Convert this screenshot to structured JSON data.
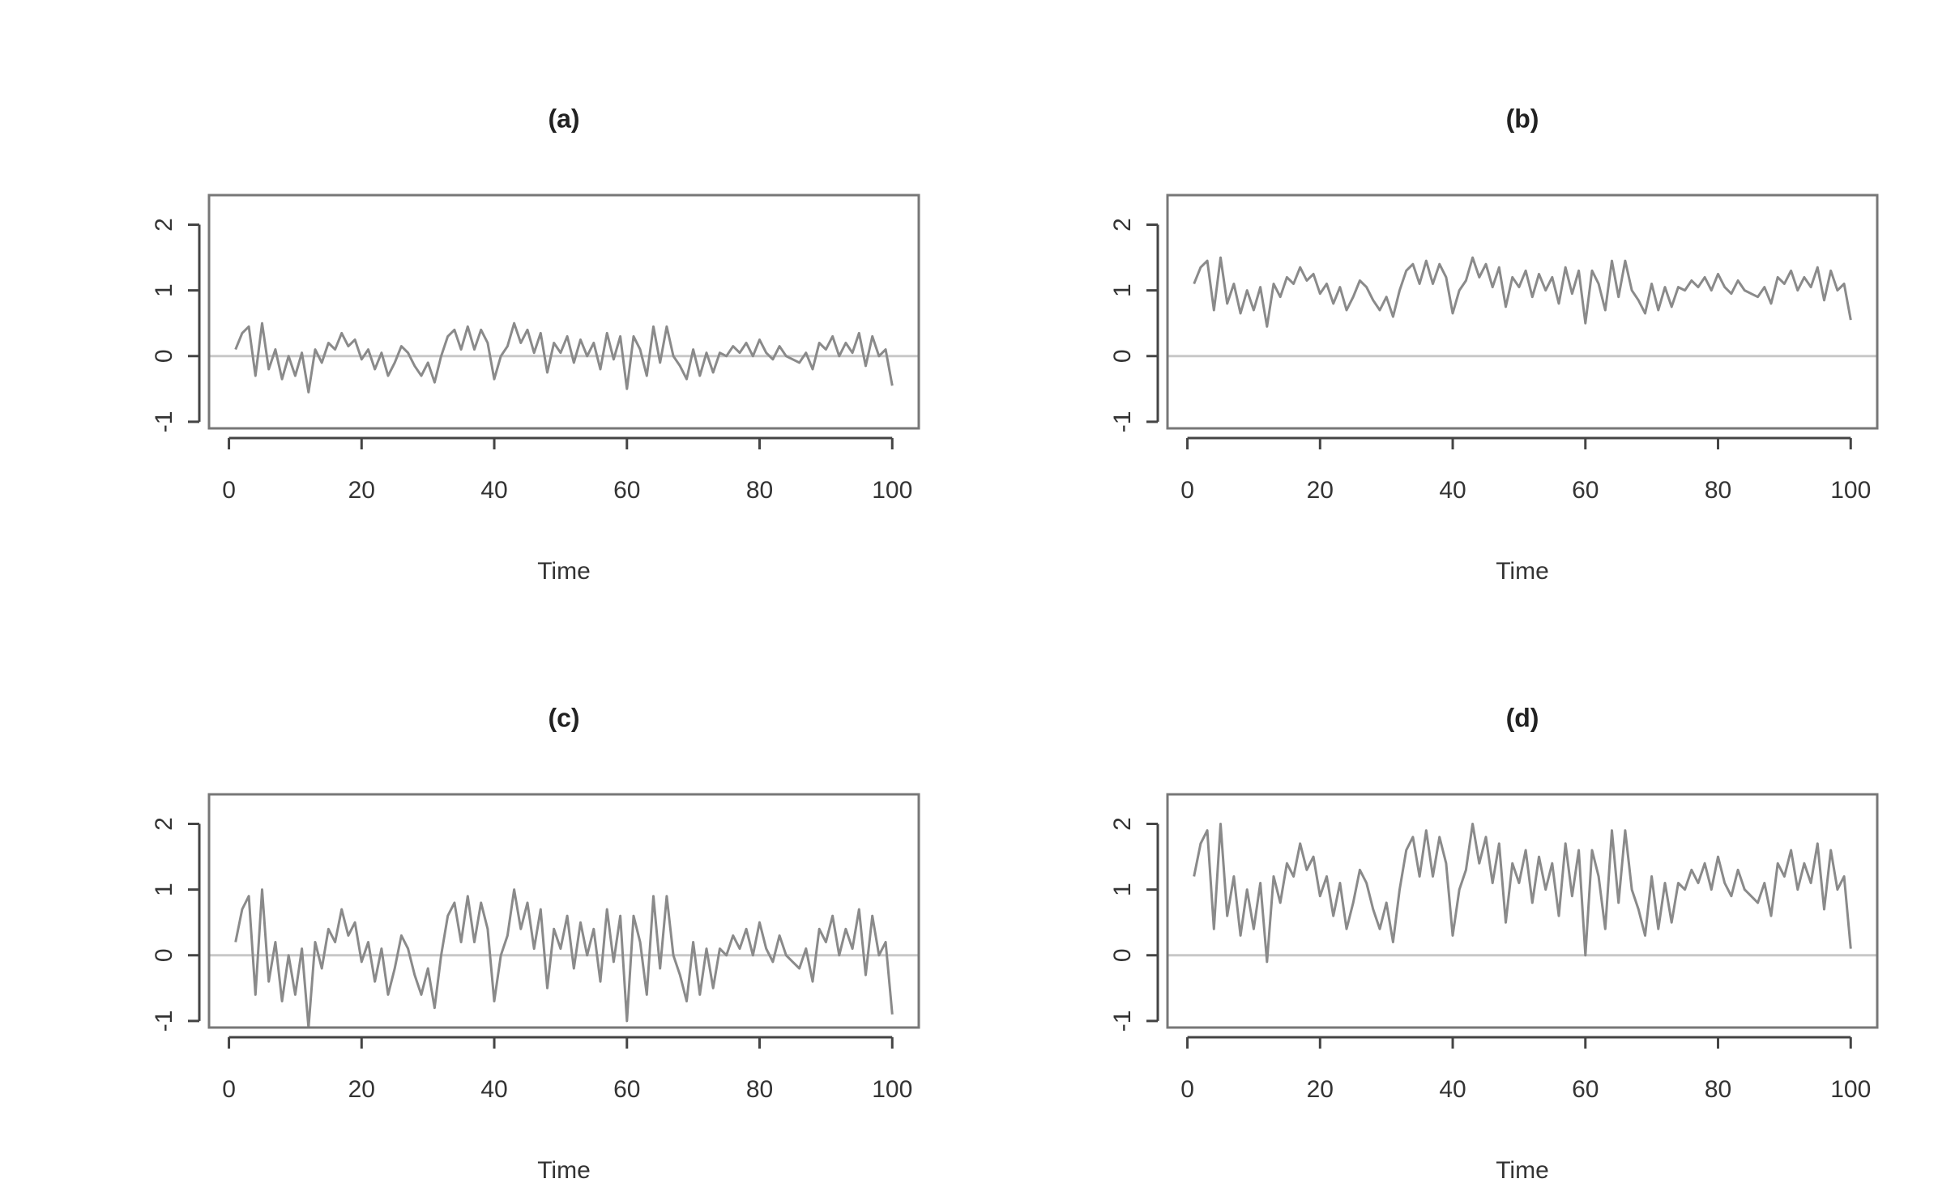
{
  "chart_data": [
    {
      "type": "line",
      "title": "(a)",
      "xlabel": "Time",
      "xlim": [
        -3,
        104
      ],
      "ylim": [
        -1.1,
        2.45
      ],
      "xticks": [
        0,
        20,
        40,
        60,
        80,
        100
      ],
      "yticks": [
        -1,
        0,
        1,
        2
      ],
      "hline": 0,
      "color": "#8a8a8a",
      "x": [
        1,
        2,
        3,
        4,
        5,
        6,
        7,
        8,
        9,
        10,
        11,
        12,
        13,
        14,
        15,
        16,
        17,
        18,
        19,
        20,
        21,
        22,
        23,
        24,
        25,
        26,
        27,
        28,
        29,
        30,
        31,
        32,
        33,
        34,
        35,
        36,
        37,
        38,
        39,
        40,
        41,
        42,
        43,
        44,
        45,
        46,
        47,
        48,
        49,
        50,
        51,
        52,
        53,
        54,
        55,
        56,
        57,
        58,
        59,
        60,
        61,
        62,
        63,
        64,
        65,
        66,
        67,
        68,
        69,
        70,
        71,
        72,
        73,
        74,
        75,
        76,
        77,
        78,
        79,
        80,
        81,
        82,
        83,
        84,
        85,
        86,
        87,
        88,
        89,
        90,
        91,
        92,
        93,
        94,
        95,
        96,
        97,
        98,
        99,
        100
      ],
      "values": [
        0.1,
        0.35,
        0.45,
        -0.3,
        0.5,
        -0.2,
        0.1,
        -0.35,
        0.0,
        -0.3,
        0.05,
        -0.55,
        0.1,
        -0.1,
        0.2,
        0.1,
        0.35,
        0.15,
        0.25,
        -0.05,
        0.1,
        -0.2,
        0.05,
        -0.3,
        -0.1,
        0.15,
        0.05,
        -0.15,
        -0.3,
        -0.1,
        -0.4,
        0.0,
        0.3,
        0.4,
        0.1,
        0.45,
        0.1,
        0.4,
        0.2,
        -0.35,
        0.0,
        0.15,
        0.5,
        0.2,
        0.4,
        0.05,
        0.35,
        -0.25,
        0.2,
        0.05,
        0.3,
        -0.1,
        0.25,
        0.0,
        0.2,
        -0.2,
        0.35,
        -0.05,
        0.3,
        -0.5,
        0.3,
        0.1,
        -0.3,
        0.45,
        -0.1,
        0.45,
        0.0,
        -0.15,
        -0.35,
        0.1,
        -0.3,
        0.05,
        -0.25,
        0.05,
        0.0,
        0.15,
        0.05,
        0.2,
        0.0,
        0.25,
        0.05,
        -0.05,
        0.15,
        0.0,
        -0.05,
        -0.1,
        0.05,
        -0.2,
        0.2,
        0.1,
        0.3,
        0.0,
        0.2,
        0.05,
        0.35,
        -0.15,
        0.3,
        0.0,
        0.1,
        -0.45
      ]
    },
    {
      "type": "line",
      "title": "(b)",
      "xlabel": "Time",
      "xlim": [
        -3,
        104
      ],
      "ylim": [
        -1.1,
        2.45
      ],
      "xticks": [
        0,
        20,
        40,
        60,
        80,
        100
      ],
      "yticks": [
        -1,
        0,
        1,
        2
      ],
      "hline": 0,
      "color": "#8a8a8a",
      "x": [
        1,
        2,
        3,
        4,
        5,
        6,
        7,
        8,
        9,
        10,
        11,
        12,
        13,
        14,
        15,
        16,
        17,
        18,
        19,
        20,
        21,
        22,
        23,
        24,
        25,
        26,
        27,
        28,
        29,
        30,
        31,
        32,
        33,
        34,
        35,
        36,
        37,
        38,
        39,
        40,
        41,
        42,
        43,
        44,
        45,
        46,
        47,
        48,
        49,
        50,
        51,
        52,
        53,
        54,
        55,
        56,
        57,
        58,
        59,
        60,
        61,
        62,
        63,
        64,
        65,
        66,
        67,
        68,
        69,
        70,
        71,
        72,
        73,
        74,
        75,
        76,
        77,
        78,
        79,
        80,
        81,
        82,
        83,
        84,
        85,
        86,
        87,
        88,
        89,
        90,
        91,
        92,
        93,
        94,
        95,
        96,
        97,
        98,
        99,
        100
      ],
      "values": [
        1.1,
        1.35,
        1.45,
        0.7,
        1.5,
        0.8,
        1.1,
        0.65,
        1.0,
        0.7,
        1.05,
        0.45,
        1.1,
        0.9,
        1.2,
        1.1,
        1.35,
        1.15,
        1.25,
        0.95,
        1.1,
        0.8,
        1.05,
        0.7,
        0.9,
        1.15,
        1.05,
        0.85,
        0.7,
        0.9,
        0.6,
        1.0,
        1.3,
        1.4,
        1.1,
        1.45,
        1.1,
        1.4,
        1.2,
        0.65,
        1.0,
        1.15,
        1.5,
        1.2,
        1.4,
        1.05,
        1.35,
        0.75,
        1.2,
        1.05,
        1.3,
        0.9,
        1.25,
        1.0,
        1.2,
        0.8,
        1.35,
        0.95,
        1.3,
        0.5,
        1.3,
        1.1,
        0.7,
        1.45,
        0.9,
        1.45,
        1.0,
        0.85,
        0.65,
        1.1,
        0.7,
        1.05,
        0.75,
        1.05,
        1.0,
        1.15,
        1.05,
        1.2,
        1.0,
        1.25,
        1.05,
        0.95,
        1.15,
        1.0,
        0.95,
        0.9,
        1.05,
        0.8,
        1.2,
        1.1,
        1.3,
        1.0,
        1.2,
        1.05,
        1.35,
        0.85,
        1.3,
        1.0,
        1.1,
        0.55
      ]
    },
    {
      "type": "line",
      "title": "(c)",
      "xlabel": "Time",
      "xlim": [
        -3,
        104
      ],
      "ylim": [
        -1.1,
        2.45
      ],
      "xticks": [
        0,
        20,
        40,
        60,
        80,
        100
      ],
      "yticks": [
        -1,
        0,
        1,
        2
      ],
      "hline": 0,
      "color": "#8a8a8a",
      "x": [
        1,
        2,
        3,
        4,
        5,
        6,
        7,
        8,
        9,
        10,
        11,
        12,
        13,
        14,
        15,
        16,
        17,
        18,
        19,
        20,
        21,
        22,
        23,
        24,
        25,
        26,
        27,
        28,
        29,
        30,
        31,
        32,
        33,
        34,
        35,
        36,
        37,
        38,
        39,
        40,
        41,
        42,
        43,
        44,
        45,
        46,
        47,
        48,
        49,
        50,
        51,
        52,
        53,
        54,
        55,
        56,
        57,
        58,
        59,
        60,
        61,
        62,
        63,
        64,
        65,
        66,
        67,
        68,
        69,
        70,
        71,
        72,
        73,
        74,
        75,
        76,
        77,
        78,
        79,
        80,
        81,
        82,
        83,
        84,
        85,
        86,
        87,
        88,
        89,
        90,
        91,
        92,
        93,
        94,
        95,
        96,
        97,
        98,
        99,
        100
      ],
      "values": [
        0.2,
        0.7,
        0.9,
        -0.6,
        1.0,
        -0.4,
        0.2,
        -0.7,
        0.0,
        -0.6,
        0.1,
        -1.1,
        0.2,
        -0.2,
        0.4,
        0.2,
        0.7,
        0.3,
        0.5,
        -0.1,
        0.2,
        -0.4,
        0.1,
        -0.6,
        -0.2,
        0.3,
        0.1,
        -0.3,
        -0.6,
        -0.2,
        -0.8,
        0.0,
        0.6,
        0.8,
        0.2,
        0.9,
        0.2,
        0.8,
        0.4,
        -0.7,
        0.0,
        0.3,
        1.0,
        0.4,
        0.8,
        0.1,
        0.7,
        -0.5,
        0.4,
        0.1,
        0.6,
        -0.2,
        0.5,
        0.0,
        0.4,
        -0.4,
        0.7,
        -0.1,
        0.6,
        -1.0,
        0.6,
        0.2,
        -0.6,
        0.9,
        -0.2,
        0.9,
        0.0,
        -0.3,
        -0.7,
        0.2,
        -0.6,
        0.1,
        -0.5,
        0.1,
        0.0,
        0.3,
        0.1,
        0.4,
        0.0,
        0.5,
        0.1,
        -0.1,
        0.3,
        0.0,
        -0.1,
        -0.2,
        0.1,
        -0.4,
        0.4,
        0.2,
        0.6,
        0.0,
        0.4,
        0.1,
        0.7,
        -0.3,
        0.6,
        0.0,
        0.2,
        -0.9
      ]
    },
    {
      "type": "line",
      "title": "(d)",
      "xlabel": "Time",
      "xlim": [
        -3,
        104
      ],
      "ylim": [
        -1.1,
        2.45
      ],
      "xticks": [
        0,
        20,
        40,
        60,
        80,
        100
      ],
      "yticks": [
        -1,
        0,
        1,
        2
      ],
      "hline": 0,
      "color": "#8a8a8a",
      "x": [
        1,
        2,
        3,
        4,
        5,
        6,
        7,
        8,
        9,
        10,
        11,
        12,
        13,
        14,
        15,
        16,
        17,
        18,
        19,
        20,
        21,
        22,
        23,
        24,
        25,
        26,
        27,
        28,
        29,
        30,
        31,
        32,
        33,
        34,
        35,
        36,
        37,
        38,
        39,
        40,
        41,
        42,
        43,
        44,
        45,
        46,
        47,
        48,
        49,
        50,
        51,
        52,
        53,
        54,
        55,
        56,
        57,
        58,
        59,
        60,
        61,
        62,
        63,
        64,
        65,
        66,
        67,
        68,
        69,
        70,
        71,
        72,
        73,
        74,
        75,
        76,
        77,
        78,
        79,
        80,
        81,
        82,
        83,
        84,
        85,
        86,
        87,
        88,
        89,
        90,
        91,
        92,
        93,
        94,
        95,
        96,
        97,
        98,
        99,
        100
      ],
      "values": [
        1.2,
        1.7,
        1.9,
        0.4,
        2.0,
        0.6,
        1.2,
        0.3,
        1.0,
        0.4,
        1.1,
        -0.1,
        1.2,
        0.8,
        1.4,
        1.2,
        1.7,
        1.3,
        1.5,
        0.9,
        1.2,
        0.6,
        1.1,
        0.4,
        0.8,
        1.3,
        1.1,
        0.7,
        0.4,
        0.8,
        0.2,
        1.0,
        1.6,
        1.8,
        1.2,
        1.9,
        1.2,
        1.8,
        1.4,
        0.3,
        1.0,
        1.3,
        2.0,
        1.4,
        1.8,
        1.1,
        1.7,
        0.5,
        1.4,
        1.1,
        1.6,
        0.8,
        1.5,
        1.0,
        1.4,
        0.6,
        1.7,
        0.9,
        1.6,
        0.0,
        1.6,
        1.2,
        0.4,
        1.9,
        0.8,
        1.9,
        1.0,
        0.7,
        0.3,
        1.2,
        0.4,
        1.1,
        0.5,
        1.1,
        1.0,
        1.3,
        1.1,
        1.4,
        1.0,
        1.5,
        1.1,
        0.9,
        1.3,
        1.0,
        0.9,
        0.8,
        1.1,
        0.6,
        1.4,
        1.2,
        1.6,
        1.0,
        1.4,
        1.1,
        1.7,
        0.7,
        1.6,
        1.0,
        1.2,
        0.1
      ]
    }
  ]
}
